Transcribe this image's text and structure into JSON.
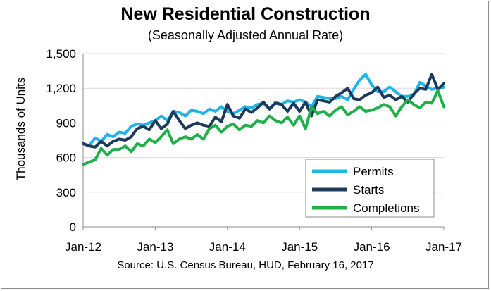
{
  "chart_data": {
    "type": "line",
    "title": "New Residential Construction",
    "subtitle": "(Seasonally Adjusted Annual Rate)",
    "ylabel": "Thousands of Units",
    "xlabel": "",
    "ylim": [
      0,
      1500
    ],
    "yticks": [
      0,
      300,
      600,
      900,
      "1,200",
      "1,500"
    ],
    "ytick_values": [
      0,
      300,
      600,
      900,
      1200,
      1500
    ],
    "xticks": [
      "Jan-12",
      "Jan-13",
      "Jan-14",
      "Jan-15",
      "Jan-16",
      "Jan-17"
    ],
    "xtick_month_index": [
      0,
      12,
      24,
      36,
      48,
      60
    ],
    "x_month_count": 61,
    "grid": true,
    "legend_position": "lower-right",
    "source": "Source:  U.S. Census Bureau, HUD, February 16, 2017",
    "series": [
      {
        "name": "Permits",
        "color": "#1fb4ea",
        "values": [
          720,
          705,
          770,
          740,
          800,
          780,
          820,
          810,
          870,
          890,
          880,
          900,
          920,
          960,
          920,
          1000,
          990,
          960,
          1010,
          1000,
          980,
          1020,
          1000,
          1040,
          1000,
          980,
          1010,
          1040,
          1030,
          1060,
          1070,
          1020,
          1080,
          1060,
          1090,
          1080,
          1100,
          1080,
          1040,
          1130,
          1120,
          1110,
          1110,
          1130,
          1100,
          1190,
          1270,
          1320,
          1230,
          1170,
          1170,
          1210,
          1170,
          1130,
          1130,
          1140,
          1250,
          1220,
          1190,
          1200,
          1210
        ]
      },
      {
        "name": "Starts",
        "color": "#1e3a5a",
        "values": [
          720,
          700,
          690,
          740,
          700,
          740,
          760,
          750,
          780,
          850,
          870,
          840,
          920,
          850,
          890,
          1000,
          920,
          850,
          880,
          900,
          880,
          870,
          950,
          910,
          1060,
          960,
          940,
          1020,
          990,
          1030,
          1080,
          1020,
          1070,
          1060,
          1000,
          1070,
          1000,
          1080,
          960,
          1100,
          1090,
          1080,
          1130,
          1160,
          1200,
          1110,
          1100,
          1140,
          1160,
          1210,
          1120,
          1140,
          1100,
          1130,
          1080,
          1150,
          1200,
          1190,
          1320,
          1190,
          1240
        ]
      },
      {
        "name": "Completions",
        "color": "#1fb04a",
        "values": [
          540,
          560,
          580,
          680,
          620,
          670,
          670,
          700,
          650,
          720,
          700,
          760,
          730,
          780,
          840,
          720,
          760,
          780,
          760,
          800,
          760,
          850,
          880,
          820,
          870,
          890,
          840,
          880,
          870,
          920,
          900,
          960,
          920,
          900,
          950,
          880,
          960,
          850,
          1040,
          980,
          1000,
          960,
          1010,
          1040,
          970,
          1000,
          1040,
          1000,
          1010,
          1030,
          1060,
          1040,
          960,
          1040,
          1100,
          1060,
          1030,
          1080,
          1070,
          1180,
          1040
        ]
      }
    ]
  }
}
